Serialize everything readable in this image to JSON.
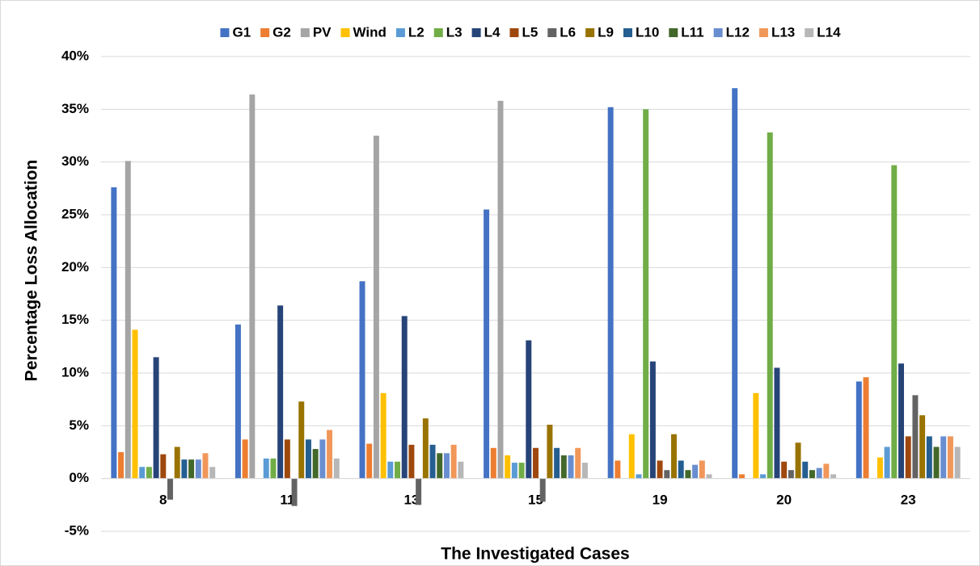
{
  "chart_data": {
    "type": "bar",
    "y_label": "Percentage Loss Allocation",
    "x_label": "The Investigated Cases",
    "categories": [
      "8",
      "11",
      "13",
      "15",
      "19",
      "20",
      "23"
    ],
    "ylim": [
      -5,
      40
    ],
    "yticks": [
      {
        "value": -5,
        "label": "-5%"
      },
      {
        "value": 0,
        "label": "0%"
      },
      {
        "value": 5,
        "label": "5%"
      },
      {
        "value": 10,
        "label": "10%"
      },
      {
        "value": 15,
        "label": "15%"
      },
      {
        "value": 20,
        "label": "20%"
      },
      {
        "value": 25,
        "label": "25%"
      },
      {
        "value": 30,
        "label": "30%"
      },
      {
        "value": 35,
        "label": "35%"
      },
      {
        "value": 40,
        "label": "40%"
      }
    ],
    "grid": true,
    "legend": "top",
    "series": [
      {
        "name": "G1",
        "color": "#4472c4",
        "values": [
          27.6,
          14.6,
          18.7,
          25.5,
          35.2,
          37.0,
          9.2
        ]
      },
      {
        "name": "G2",
        "color": "#ed7d31",
        "values": [
          2.5,
          3.7,
          3.3,
          2.9,
          1.7,
          0.4,
          9.6
        ]
      },
      {
        "name": "PV",
        "color": "#a5a5a5",
        "values": [
          30.1,
          36.4,
          32.5,
          35.8,
          0,
          0,
          0
        ]
      },
      {
        "name": "Wind",
        "color": "#ffc000",
        "values": [
          14.1,
          0,
          8.1,
          2.2,
          4.2,
          8.1,
          2.0
        ]
      },
      {
        "name": "L2",
        "color": "#5b9bd5",
        "values": [
          1.1,
          1.9,
          1.6,
          1.5,
          0.4,
          0.4,
          3.0
        ]
      },
      {
        "name": "L3",
        "color": "#70ad47",
        "values": [
          1.1,
          1.9,
          1.6,
          1.5,
          35.0,
          32.8,
          29.7
        ]
      },
      {
        "name": "L4",
        "color": "#264478",
        "values": [
          11.5,
          16.4,
          15.4,
          13.1,
          11.1,
          10.5,
          10.9
        ]
      },
      {
        "name": "L5",
        "color": "#9e480e",
        "values": [
          2.3,
          3.7,
          3.2,
          2.9,
          1.7,
          1.6,
          4.0
        ]
      },
      {
        "name": "L6",
        "color": "#636363",
        "values": [
          -2.0,
          -2.6,
          -2.5,
          -2.2,
          0.8,
          0.8,
          7.9
        ]
      },
      {
        "name": "L9",
        "color": "#997300",
        "values": [
          3.0,
          7.3,
          5.7,
          5.1,
          4.2,
          3.4,
          6.0
        ]
      },
      {
        "name": "L10",
        "color": "#255e91",
        "values": [
          1.8,
          3.7,
          3.2,
          2.9,
          1.7,
          1.6,
          4.0
        ]
      },
      {
        "name": "L11",
        "color": "#43682b",
        "values": [
          1.8,
          2.8,
          2.4,
          2.2,
          0.8,
          0.8,
          3.0
        ]
      },
      {
        "name": "L12",
        "color": "#698ed0",
        "values": [
          1.8,
          3.7,
          2.4,
          2.2,
          1.3,
          1.0,
          4.0
        ]
      },
      {
        "name": "L13",
        "color": "#f1975a",
        "values": [
          2.4,
          4.6,
          3.2,
          2.9,
          1.7,
          1.4,
          4.0
        ]
      },
      {
        "name": "L14",
        "color": "#b7b7b7",
        "values": [
          1.1,
          1.9,
          1.6,
          1.5,
          0.4,
          0.4,
          3.0
        ]
      }
    ]
  }
}
